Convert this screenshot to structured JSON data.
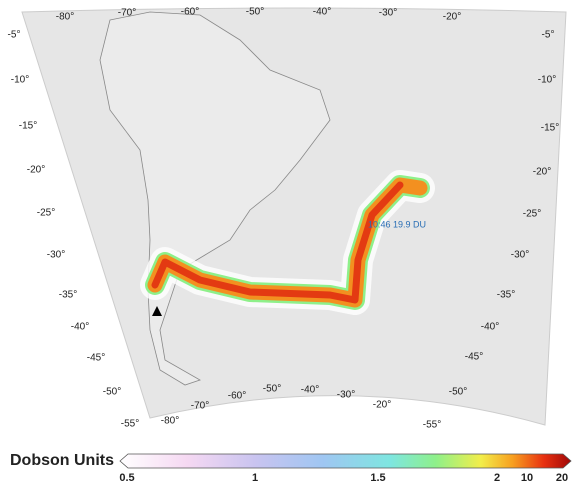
{
  "map": {
    "top_lon_labels": [
      "-80°",
      "-70°",
      "-60°",
      "-50°",
      "-40°",
      "-30°",
      "-20°"
    ],
    "left_lat_labels": [
      "-5°",
      "-10°",
      "-15°",
      "-20°",
      "-25°",
      "-30°",
      "-35°",
      "-40°",
      "-45°",
      "-50°",
      "-55°"
    ],
    "right_lat_labels": [
      "-5°",
      "-10°",
      "-15°",
      "-20°",
      "-25°",
      "-30°",
      "-35°",
      "-40°",
      "-45°",
      "-50°",
      "-55°"
    ],
    "bottom_lon_labels": [
      "-80°",
      "-70°",
      "-60°",
      "-50°",
      "-40°",
      "-30°",
      "-20°"
    ],
    "annotation": "10:46  19.9 DU"
  },
  "colorbar": {
    "title": "Dobson Units",
    "tick_labels": [
      "0.5",
      "1",
      "1.5",
      "2",
      "10",
      "20"
    ]
  }
}
